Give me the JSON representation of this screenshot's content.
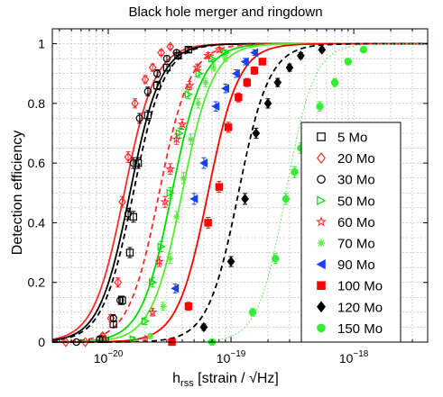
{
  "chart_data": {
    "type": "scatter",
    "title": "Black hole merger and ringdown",
    "xlabel_main": "h",
    "xlabel_sub": "rss",
    "xlabel_rest": " [strain / √Hz]",
    "ylabel": "Detection efficiency",
    "x_scale": "log",
    "xlim": [
      3.5e-21,
      4e-18
    ],
    "ylim": [
      0,
      1.05
    ],
    "x_ticks": [
      {
        "value": 1e-20,
        "base": "10",
        "exp": "−20"
      },
      {
        "value": 1e-19,
        "base": "10",
        "exp": "−19"
      },
      {
        "value": 1e-18,
        "base": "10",
        "exp": "−18"
      }
    ],
    "y_ticks": [
      {
        "value": 0,
        "label": "0"
      },
      {
        "value": 0.2,
        "label": "0.2"
      },
      {
        "value": 0.4,
        "label": "0.4"
      },
      {
        "value": 0.6,
        "label": "0.6"
      },
      {
        "value": 0.8,
        "label": "0.8"
      },
      {
        "value": 1,
        "label": "1"
      }
    ],
    "grid": true,
    "legend_position": "right",
    "series": [
      {
        "name": "5 Mo",
        "color": "#000000",
        "marker": "square-open",
        "curve": "dashed",
        "h50": 1.6e-20,
        "width": 0.55,
        "points": [
          [
            9e-21,
            0.01
          ],
          [
            1.1e-20,
            0.06
          ],
          [
            1.3e-20,
            0.14
          ],
          [
            1.5e-20,
            0.3
          ],
          [
            1.6e-20,
            0.42
          ],
          [
            1.75e-20,
            0.6
          ],
          [
            2.1e-20,
            0.76
          ],
          [
            2.5e-20,
            0.86
          ],
          [
            3e-20,
            0.92
          ],
          [
            3.7e-20,
            0.96
          ],
          [
            4.5e-20,
            0.98
          ]
        ]
      },
      {
        "name": "20 Mo",
        "color": "#ff2a2a",
        "marker": "diamond-open",
        "curve": "solid",
        "h50": 1.35e-20,
        "width": 0.55,
        "points": [
          [
            4.5e-21,
            0
          ],
          [
            6.5e-21,
            0
          ],
          [
            9e-21,
            0.02
          ],
          [
            1.05e-20,
            0.08
          ],
          [
            1.2e-20,
            0.2
          ],
          [
            1.3e-20,
            0.47
          ],
          [
            1.45e-20,
            0.62
          ],
          [
            1.65e-20,
            0.8
          ],
          [
            2e-20,
            0.88
          ],
          [
            2.3e-20,
            0.92
          ],
          [
            2.7e-20,
            0.97
          ],
          [
            3.2e-20,
            0.99
          ]
        ]
      },
      {
        "name": "30 Mo",
        "color": "#000000",
        "marker": "circle-open",
        "curve": "solid",
        "h50": 1.5e-20,
        "width": 0.55,
        "points": [
          [
            5.5e-21,
            0
          ],
          [
            8.5e-21,
            0.01
          ],
          [
            1.1e-20,
            0.08
          ],
          [
            1.25e-20,
            0.14
          ],
          [
            1.45e-20,
            0.43
          ],
          [
            1.6e-20,
            0.6
          ],
          [
            1.8e-20,
            0.75
          ],
          [
            2.1e-20,
            0.84
          ],
          [
            2.5e-20,
            0.9
          ],
          [
            3e-20,
            0.95
          ],
          [
            3.6e-20,
            0.97
          ]
        ]
      },
      {
        "name": "50 Mo",
        "color": "#00dd00",
        "marker": "triangle-right-open",
        "curve": "solid",
        "h50": 3.3e-20,
        "width": 0.55,
        "points": [
          [
            1.6e-20,
            0.01
          ],
          [
            2e-20,
            0.07
          ],
          [
            2.3e-20,
            0.2
          ],
          [
            2.7e-20,
            0.32
          ],
          [
            3.2e-20,
            0.5
          ],
          [
            3.8e-20,
            0.7
          ],
          [
            4.5e-20,
            0.83
          ],
          [
            5.5e-20,
            0.9
          ],
          [
            7e-20,
            0.95
          ],
          [
            9e-20,
            0.97
          ]
        ]
      },
      {
        "name": "60 Mo",
        "color": "#ff2a2a",
        "marker": "star",
        "curve": "dashed",
        "h50": 2.6e-20,
        "width": 0.55,
        "points": [
          [
            2e-20,
            0.01
          ],
          [
            2.3e-20,
            0.1
          ],
          [
            2.6e-20,
            0.27
          ],
          [
            2.9e-20,
            0.47
          ],
          [
            3.2e-20,
            0.58
          ],
          [
            3.6e-20,
            0.68
          ],
          [
            4e-20,
            0.73
          ],
          [
            4.6e-20,
            0.86
          ],
          [
            5.3e-20,
            0.92
          ],
          [
            6.5e-20,
            0.96
          ],
          [
            8e-20,
            0.98
          ]
        ]
      },
      {
        "name": "70 Mo",
        "color": "#55ee33",
        "marker": "asterisk",
        "curve": "solid",
        "h50": 4e-20,
        "width": 0.55,
        "points": [
          [
            2.2e-20,
            0.02
          ],
          [
            2.8e-20,
            0.12
          ],
          [
            3.2e-20,
            0.28
          ],
          [
            3.6e-20,
            0.42
          ],
          [
            4.1e-20,
            0.55
          ],
          [
            4.7e-20,
            0.68
          ],
          [
            5.4e-20,
            0.8
          ],
          [
            6.2e-20,
            0.87
          ],
          [
            7.2e-20,
            0.92
          ],
          [
            9e-20,
            0.95
          ]
        ]
      },
      {
        "name": "90 Mo",
        "color": "#1a3fff",
        "marker": "triangle-left",
        "curve": "none",
        "h50": 5e-20,
        "width": 0.55,
        "points": [
          [
            3.5e-20,
            0.18
          ],
          [
            5e-20,
            0.48
          ],
          [
            6e-20,
            0.6
          ],
          [
            7.5e-20,
            0.79
          ],
          [
            9e-20,
            0.85
          ],
          [
            1.1e-19,
            0.9
          ],
          [
            1.3e-19,
            0.94
          ],
          [
            1.55e-19,
            0.97
          ]
        ]
      },
      {
        "name": "100 Mo",
        "color": "#ff0000",
        "marker": "square",
        "curve": "solid",
        "h50": 6.5e-20,
        "width": 0.55,
        "points": [
          [
            3.3e-20,
            0
          ],
          [
            4.5e-20,
            0.12
          ],
          [
            6.5e-20,
            0.4
          ],
          [
            8e-20,
            0.52
          ],
          [
            9.5e-20,
            0.72
          ],
          [
            1.15e-19,
            0.82
          ],
          [
            1.35e-19,
            0.87
          ],
          [
            1.55e-19,
            0.91
          ],
          [
            1.8e-19,
            0.94
          ]
        ]
      },
      {
        "name": "120 Mo",
        "color": "#000000",
        "marker": "diamond",
        "curve": "dashed",
        "h50": 1.15e-19,
        "width": 0.55,
        "points": [
          [
            6e-20,
            0.05
          ],
          [
            1e-19,
            0.27
          ],
          [
            1.3e-19,
            0.48
          ],
          [
            1.6e-19,
            0.7
          ],
          [
            2e-19,
            0.8
          ],
          [
            2.4e-19,
            0.87
          ],
          [
            3e-19,
            0.92
          ],
          [
            3.7e-19,
            0.96
          ],
          [
            5.5e-19,
            0.98
          ]
        ]
      },
      {
        "name": "150 Mo",
        "color": "#33ee33",
        "marker": "circle",
        "curve": "dotted",
        "h50": 2.8e-19,
        "width": 0.5,
        "points": [
          [
            7e-20,
            0
          ],
          [
            1.5e-19,
            0.1
          ],
          [
            2.3e-19,
            0.28
          ],
          [
            2.8e-19,
            0.48
          ],
          [
            3.3e-19,
            0.57
          ],
          [
            3.7e-19,
            0.65
          ],
          [
            4.2e-19,
            0.72
          ],
          [
            5.3e-19,
            0.79
          ],
          [
            7e-19,
            0.87
          ],
          [
            9e-19,
            0.94
          ],
          [
            1.2e-18,
            0.98
          ]
        ]
      }
    ]
  }
}
